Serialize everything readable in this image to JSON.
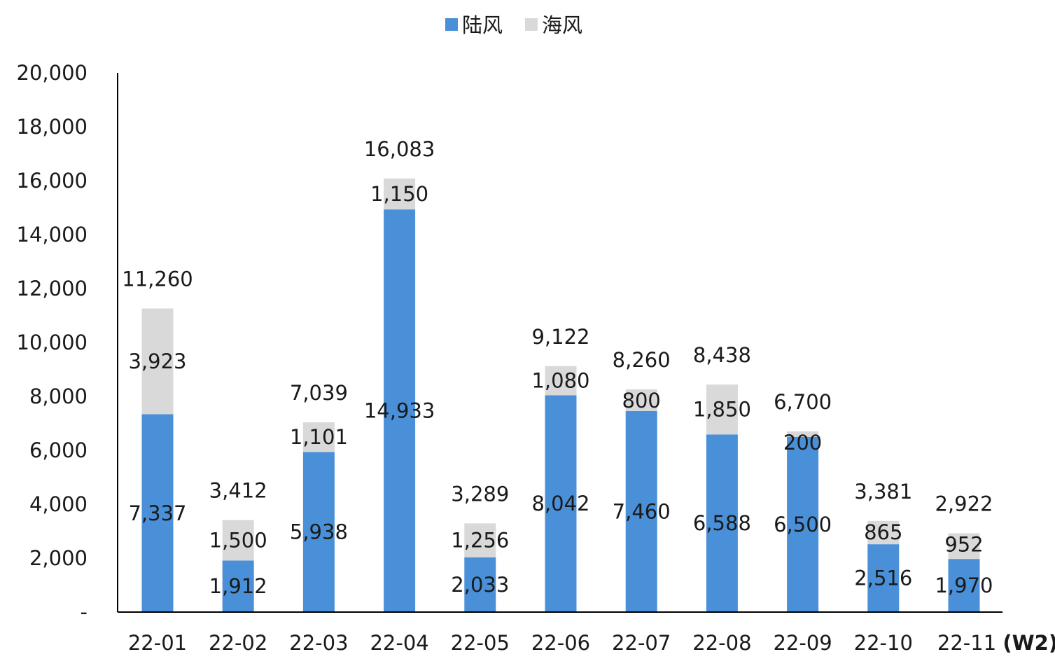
{
  "legend": [
    {
      "label": "陆风",
      "color": "#4a90d9"
    },
    {
      "label": "海风",
      "color": "#d9d9d9"
    }
  ],
  "chart_data": {
    "type": "bar",
    "stacked": true,
    "categories": [
      "22-01",
      "22-02",
      "22-03",
      "22-04",
      "22-05",
      "22-06",
      "22-07",
      "22-08",
      "22-09",
      "22-10",
      "22-11"
    ],
    "category_suffix": {
      "index": 10,
      "text": "(W2)"
    },
    "series": [
      {
        "name": "陆风",
        "color": "#4a90d9",
        "values": [
          7337,
          1912,
          5938,
          14933,
          2033,
          8042,
          7460,
          6588,
          6500,
          2516,
          1970
        ],
        "labels": [
          "7,337",
          "1,912",
          "5,938",
          "14,933",
          "2,033",
          "8,042",
          "7,460",
          "6,588",
          "6,500",
          "2,516",
          "1,970"
        ]
      },
      {
        "name": "海风",
        "color": "#d9d9d9",
        "values": [
          3923,
          1500,
          1101,
          1150,
          1256,
          1080,
          800,
          1850,
          200,
          865,
          952
        ],
        "labels": [
          "3,923",
          "1,500",
          "1,101",
          "1,150",
          "1,256",
          "1,080",
          "800",
          "1,850",
          "200",
          "865",
          "952"
        ]
      }
    ],
    "totals": [
      11260,
      3412,
      7039,
      16083,
      3289,
      9122,
      8260,
      8438,
      6700,
      3381,
      2922
    ],
    "total_labels": [
      "11,260",
      "3,412",
      "7,039",
      "16,083",
      "3,289",
      "9,122",
      "8,260",
      "8,438",
      "6,700",
      "3,381",
      "2,922"
    ],
    "ylim": [
      0,
      20000
    ],
    "yticks": [
      0,
      2000,
      4000,
      6000,
      8000,
      10000,
      12000,
      14000,
      16000,
      18000,
      20000
    ],
    "ytick_labels": [
      "-",
      "2,000",
      "4,000",
      "6,000",
      "8,000",
      "10,000",
      "12,000",
      "14,000",
      "16,000",
      "18,000",
      "20,000"
    ],
    "grid": false,
    "legend_position": "top-center",
    "title": "",
    "xlabel": "",
    "ylabel": ""
  }
}
